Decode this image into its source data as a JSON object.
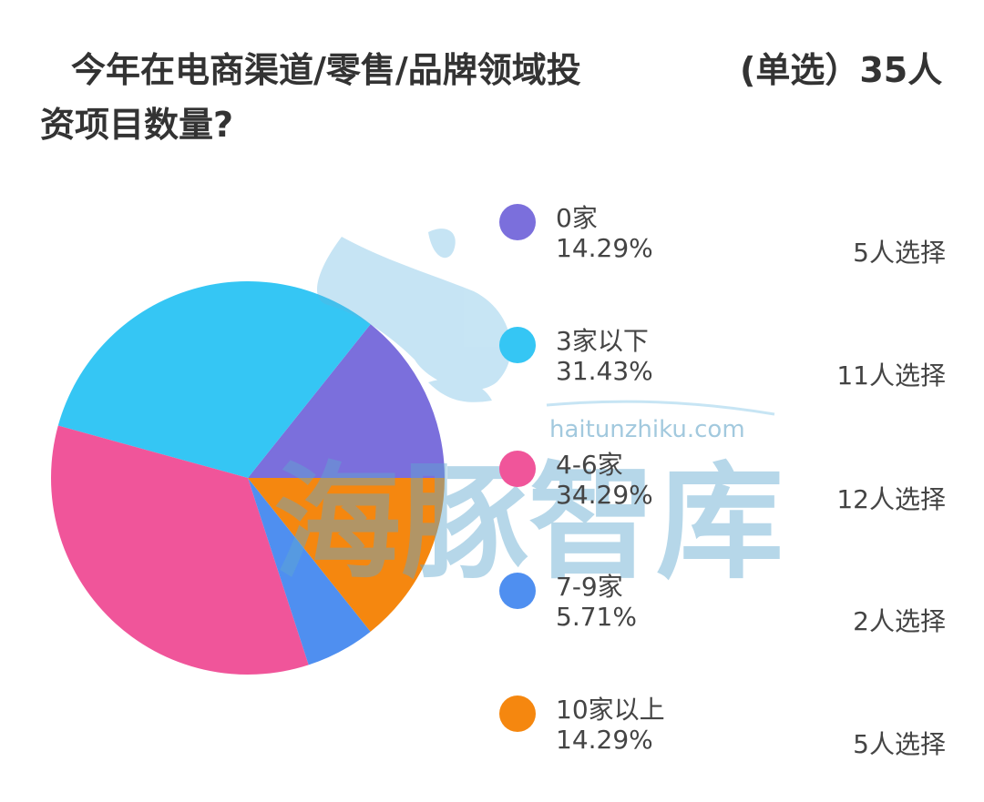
{
  "title": {
    "line1": "今年在电商渠道/零售/品牌领域投",
    "meta": "(单选）35人",
    "line2": "资项目数量?"
  },
  "watermark": {
    "url_text": "haitunzhiku.com",
    "brand_text": "海豚智库"
  },
  "chart_data": {
    "type": "pie",
    "categories": [
      "0家",
      "3家以下",
      "4-6家",
      "7-9家",
      "10家以上"
    ],
    "values": [
      5,
      11,
      12,
      2,
      5
    ],
    "percentages": [
      "14.29%",
      "31.43%",
      "34.29%",
      "5.71%",
      "14.29%"
    ],
    "counts": [
      "5人选择",
      "11人选择",
      "12人选择",
      "2人选择",
      "5人选择"
    ],
    "colors": [
      "#7b6fdc",
      "#35c6f4",
      "#f0559a",
      "#4f8ff0",
      "#f5870f"
    ],
    "total_label": "35人",
    "legend_position": "right"
  }
}
